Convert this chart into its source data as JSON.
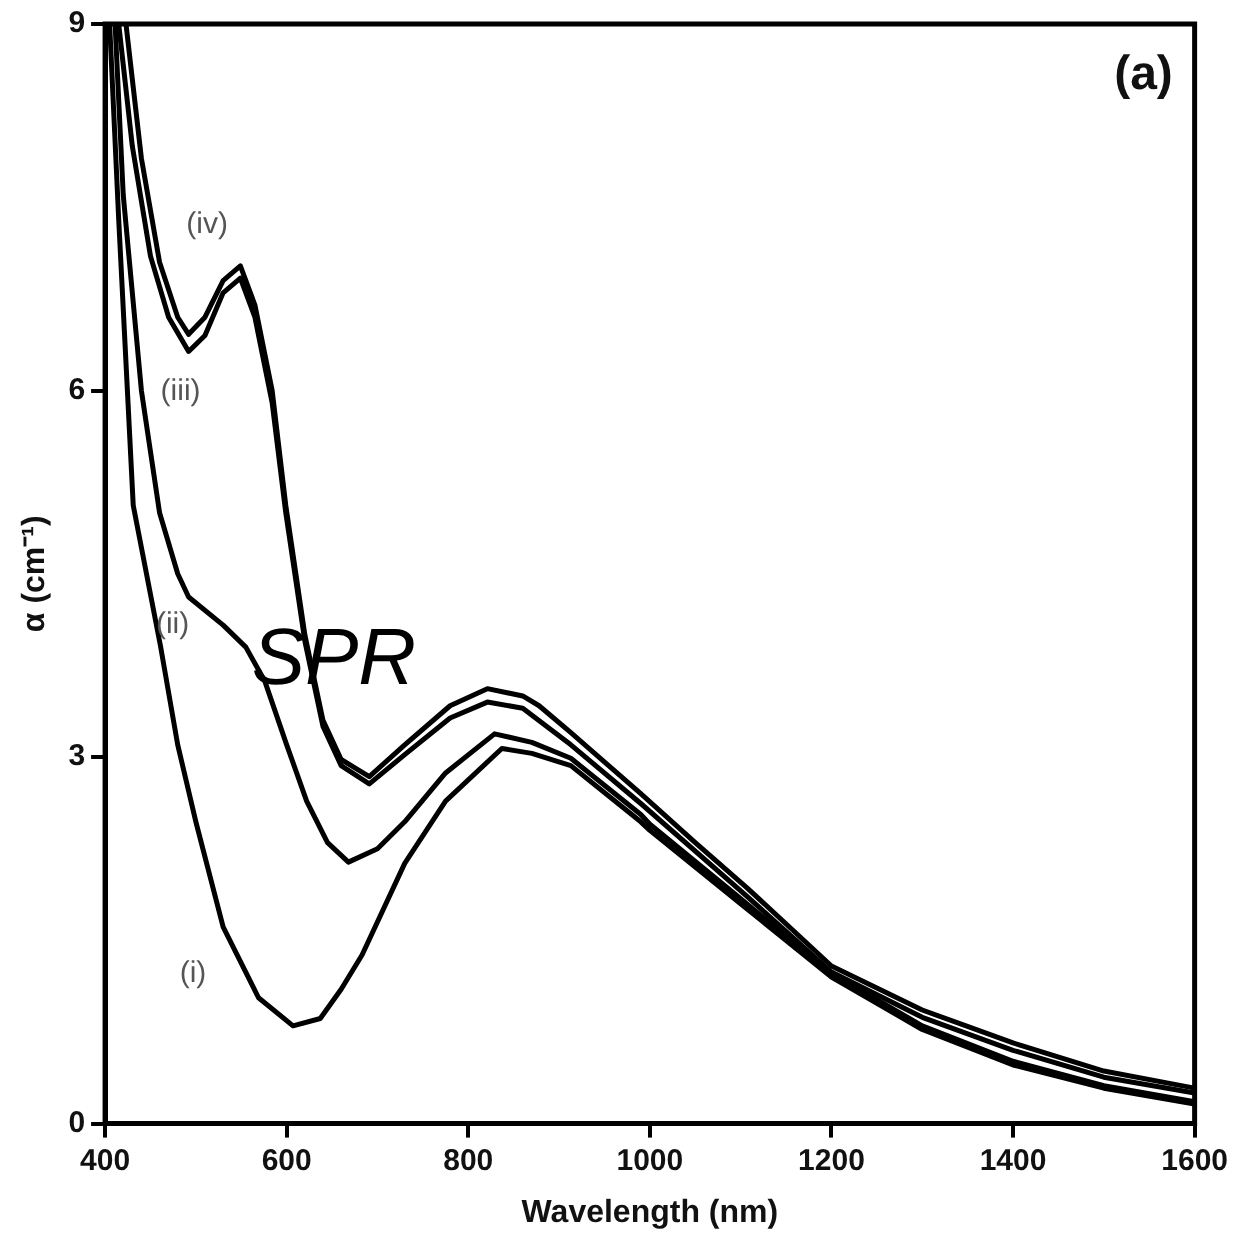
{
  "chart_data": {
    "type": "line",
    "xlabel": "Wavelength (nm)",
    "ylabel": "α (cm⁻¹)",
    "xlim": [
      400,
      1600
    ],
    "xticks": [
      400,
      600,
      800,
      1000,
      1200,
      1400,
      1600
    ],
    "ylim": [
      0,
      9
    ],
    "yticks": [
      0,
      3,
      6,
      9
    ],
    "grid": false,
    "legend": false,
    "marker": "none",
    "line_style": "solid",
    "series": [
      {
        "name": "(iv)",
        "color": "#000000",
        "x": [
          423,
          440,
          460,
          480,
          492,
          510,
          530,
          549,
          565,
          584,
          599,
          620,
          640,
          660,
          691,
          730,
          780,
          821,
          860,
          878,
          913,
          990,
          1050,
          1107,
          1200,
          1300,
          1400,
          1500,
          1600
        ],
        "values": [
          9,
          7.9,
          7.05,
          6.6,
          6.46,
          6.6,
          6.9,
          7.02,
          6.7,
          6.0,
          5.06,
          4.0,
          3.3,
          2.98,
          2.84,
          3.1,
          3.42,
          3.56,
          3.5,
          3.42,
          3.2,
          2.7,
          2.3,
          1.93,
          1.29,
          0.93,
          0.66,
          0.43,
          0.29
        ]
      },
      {
        "name": "(iii)",
        "color": "#000000",
        "x": [
          415,
          430,
          450,
          470,
          492,
          510,
          530,
          549,
          565,
          584,
          599,
          620,
          640,
          660,
          691,
          730,
          780,
          821,
          860,
          913,
          990,
          1107,
          1200,
          1300,
          1400,
          1500,
          1600
        ],
        "values": [
          9,
          8.0,
          7.1,
          6.6,
          6.32,
          6.45,
          6.8,
          6.92,
          6.6,
          5.9,
          5.0,
          3.95,
          3.25,
          2.93,
          2.78,
          3.02,
          3.32,
          3.45,
          3.4,
          3.1,
          2.62,
          1.86,
          1.24,
          0.87,
          0.6,
          0.38,
          0.25
        ]
      },
      {
        "name": "(ii)",
        "color": "#000000",
        "x": [
          411,
          420,
          440,
          460,
          480,
          492,
          530,
          555,
          576,
          600,
          622,
          645,
          668,
          700,
          730,
          775,
          829,
          870,
          913,
          990,
          1000,
          1100,
          1200,
          1300,
          1400,
          1500,
          1600
        ],
        "values": [
          9,
          7.6,
          6.0,
          5.0,
          4.5,
          4.31,
          4.08,
          3.9,
          3.62,
          3.1,
          2.64,
          2.3,
          2.14,
          2.25,
          2.47,
          2.87,
          3.19,
          3.12,
          2.99,
          2.53,
          2.45,
          1.84,
          1.23,
          0.8,
          0.51,
          0.31,
          0.18
        ]
      },
      {
        "name": "(i)",
        "color": "#000000",
        "x": [
          405,
          415,
          431,
          461,
          480,
          500,
          530,
          569,
          607,
          637,
          660,
          683,
          730,
          775,
          837,
          870,
          913,
          990,
          1000,
          1100,
          1200,
          1300,
          1400,
          1500,
          1600
        ],
        "values": [
          9,
          7.4,
          5.06,
          3.91,
          3.1,
          2.47,
          1.61,
          1.03,
          0.8,
          0.86,
          1.1,
          1.38,
          2.13,
          2.64,
          3.07,
          3.03,
          2.93,
          2.47,
          2.4,
          1.8,
          1.2,
          0.77,
          0.48,
          0.29,
          0.16
        ]
      }
    ],
    "annotations": [
      "SPR",
      "(a)"
    ]
  }
}
